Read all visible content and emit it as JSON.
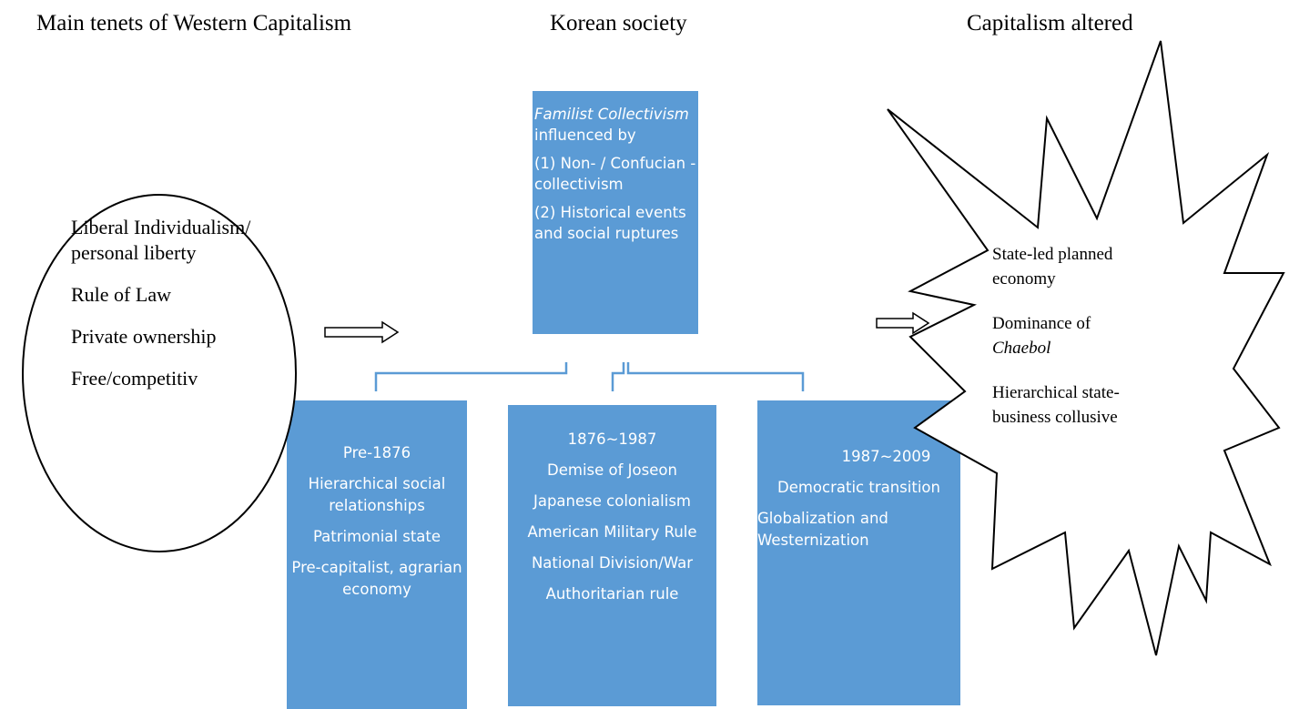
{
  "headers": [
    "Main tenets of Western Capitalism",
    "Korean society",
    "Capitalism altered"
  ],
  "ellipse": {
    "items": [
      "Liberal Individualism/ personal liberty",
      "Rule of Law",
      "Private ownership",
      "Free/competitiv"
    ]
  },
  "center_box": {
    "title": "Familist Collectivism",
    "title_suffix": "influenced by",
    "items": [
      "(1) Non- / Confucian -collectivism",
      "(2) Historical events and social ruptures"
    ]
  },
  "periods": [
    {
      "label": "Pre-1876",
      "items": [
        "Hierarchical social relationships",
        "Patrimonial state",
        "Pre-capitalist, agrarian economy"
      ]
    },
    {
      "label": "1876~1987",
      "items": [
        "Demise of Joseon",
        "Japanese colonialism",
        "American Military Rule",
        "National Division/War",
        "Authoritarian rule"
      ]
    },
    {
      "label": "1987~2009",
      "items": [
        "Democratic transition",
        "Globalization and Westernization"
      ]
    }
  ],
  "star": {
    "items": [
      {
        "text": "State-led planned economy"
      },
      {
        "text": "Dominance of",
        "emphasis": "Chaebol"
      },
      {
        "text": "Hierarchical state-business collusive"
      }
    ]
  }
}
